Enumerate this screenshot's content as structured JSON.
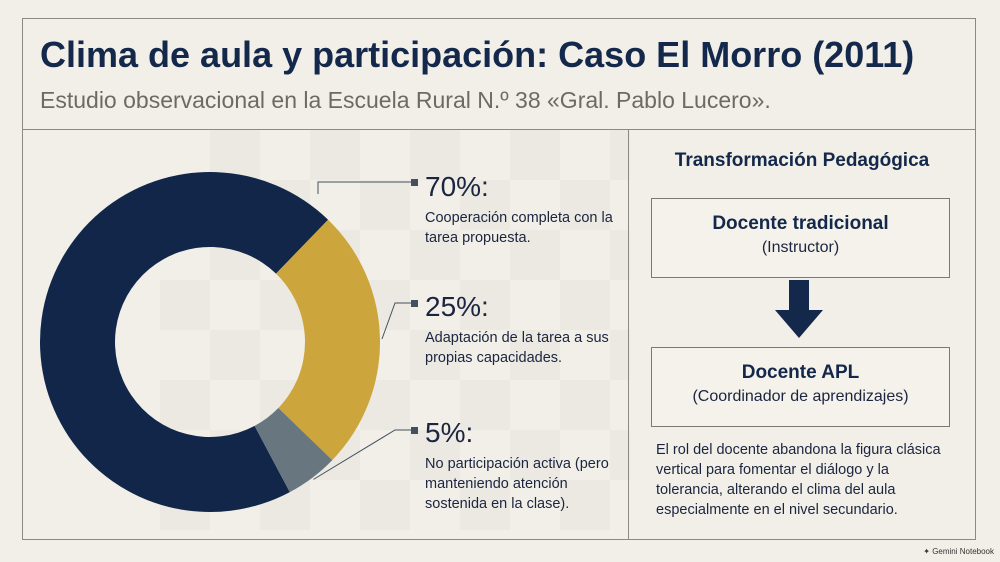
{
  "header": {
    "title": "Clima de aula y participación: Caso El Morro (2011)",
    "subtitle": "Estudio observacional en la Escuela Rural N.º 38 «Gral. Pablo Lucero»."
  },
  "chart_data": {
    "type": "pie",
    "donut": true,
    "slices": [
      {
        "value": 70,
        "label": "70%:",
        "description": "Cooperación completa con la tarea propuesta.",
        "color": "#12264a"
      },
      {
        "value": 25,
        "label": "25%:",
        "description": "Adaptación de la tarea a sus propias capacidades.",
        "color": "#cda53d"
      },
      {
        "value": 5,
        "label": "5%:",
        "description": "No participación activa (pero manteniendo atención sostenida en la clase).",
        "color": "#687680"
      }
    ]
  },
  "panel": {
    "title": "Transformación Pedagógica",
    "from": {
      "name": "Docente tradicional",
      "role": "(Instructor)"
    },
    "to": {
      "name": "Docente APL",
      "role": "(Coordinador de aprendizajes)"
    },
    "note": "El rol del docente abandona la figura clásica vertical para fomentar el diálogo y la tolerancia, alterando el clima del aula especialmente en el nivel secundario."
  },
  "watermark": "Gemini Notebook",
  "icons": {
    "arrow": "arrow-down-icon",
    "watermark": "sparkle-icon"
  }
}
